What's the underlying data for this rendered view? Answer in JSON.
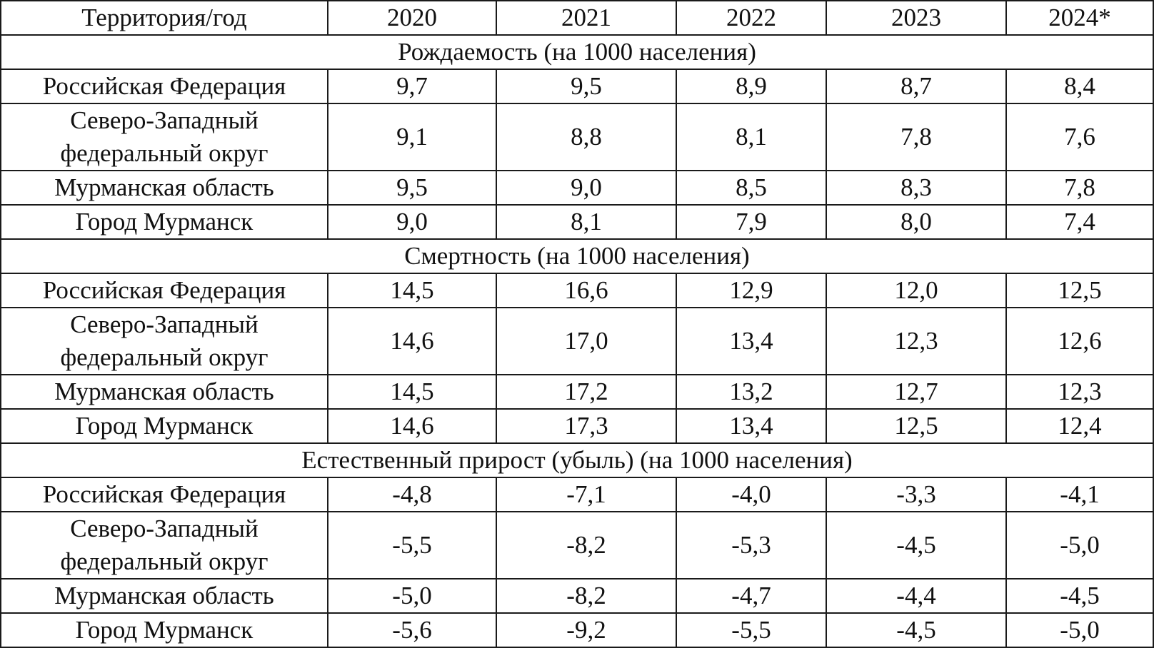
{
  "table": {
    "header": {
      "territory": "Территория/год",
      "years": [
        "2020",
        "2021",
        "2022",
        "2023",
        "2024*"
      ]
    },
    "sections": [
      {
        "title": "Рождаемость (на 1000 населения)",
        "rows": [
          {
            "name": "Российская Федерация",
            "values": [
              "9,7",
              "9,5",
              "8,9",
              "8,7",
              "8,4"
            ]
          },
          {
            "name": "Северо-Западный федеральный округ",
            "values": [
              "9,1",
              "8,8",
              "8,1",
              "7,8",
              "7,6"
            ]
          },
          {
            "name": "Мурманская область",
            "values": [
              "9,5",
              "9,0",
              "8,5",
              "8,3",
              "7,8"
            ]
          },
          {
            "name": "Город Мурманск",
            "values": [
              "9,0",
              "8,1",
              "7,9",
              "8,0",
              "7,4"
            ]
          }
        ]
      },
      {
        "title": "Смертность (на 1000 населения)",
        "rows": [
          {
            "name": "Российская Федерация",
            "values": [
              "14,5",
              "16,6",
              "12,9",
              "12,0",
              "12,5"
            ]
          },
          {
            "name": "Северо-Западный федеральный округ",
            "values": [
              "14,6",
              "17,0",
              "13,4",
              "12,3",
              "12,6"
            ]
          },
          {
            "name": "Мурманская область",
            "values": [
              "14,5",
              "17,2",
              "13,2",
              "12,7",
              "12,3"
            ]
          },
          {
            "name": "Город Мурманск",
            "values": [
              "14,6",
              "17,3",
              "13,4",
              "12,5",
              "12,4"
            ]
          }
        ]
      },
      {
        "title": "Естественный прирост (убыль) (на 1000 населения)",
        "rows": [
          {
            "name": "Российская Федерация",
            "values": [
              "-4,8",
              "-7,1",
              "-4,0",
              "-3,3",
              "-4,1"
            ]
          },
          {
            "name": "Северо-Западный федеральный округ",
            "values": [
              "-5,5",
              "-8,2",
              "-5,3",
              "-4,5",
              "-5,0"
            ]
          },
          {
            "name": "Мурманская область",
            "values": [
              "-5,0",
              "-8,2",
              "-4,7",
              "-4,4",
              "-4,5"
            ]
          },
          {
            "name": "Город Мурманск",
            "values": [
              "-5,6",
              "-9,2",
              "-5,5",
              "-4,5",
              "-5,0"
            ]
          }
        ]
      }
    ]
  }
}
